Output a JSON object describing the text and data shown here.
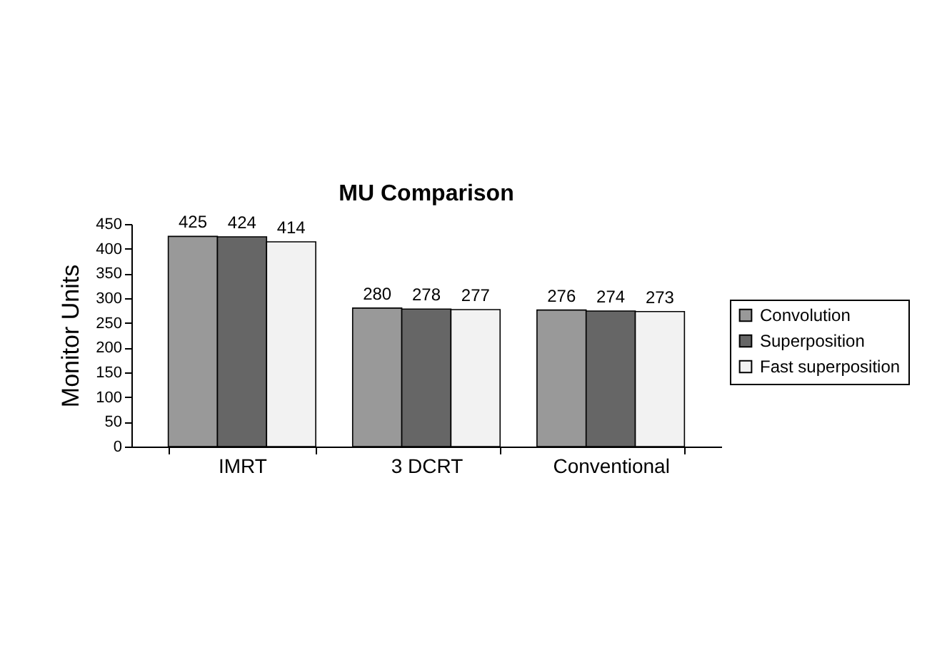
{
  "chart_data": {
    "type": "bar",
    "title": "MU Comparison",
    "ylabel": "Monitor Units",
    "categories": [
      "IMRT",
      "3 DCRT",
      "Conventional"
    ],
    "series": [
      {
        "name": "Convolution",
        "color": "#999999",
        "values": [
          425,
          280,
          276
        ]
      },
      {
        "name": "Superposition",
        "color": "#666666",
        "values": [
          424,
          278,
          274
        ]
      },
      {
        "name": "Fast superposition",
        "color": "#f2f2f2",
        "values": [
          414,
          277,
          273
        ]
      }
    ],
    "ylim": [
      0,
      450
    ],
    "yticks": [
      0,
      50,
      100,
      150,
      200,
      250,
      300,
      350,
      400,
      450
    ],
    "grid": false,
    "legend": "right",
    "data_labels": true
  }
}
